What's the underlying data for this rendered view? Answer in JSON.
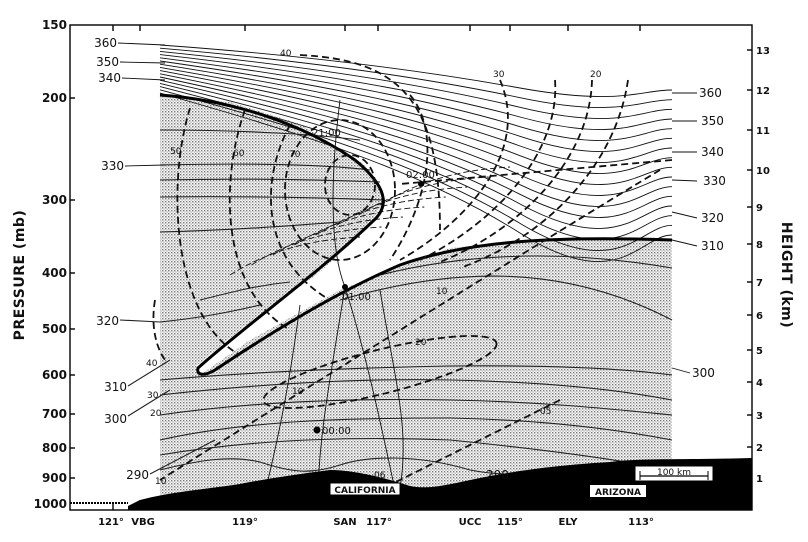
{
  "pressure_axis": {
    "title": "PRESSURE (mb)",
    "ticks": [
      "150",
      "200",
      "300",
      "400",
      "500",
      "600",
      "700",
      "800",
      "900",
      "1000"
    ]
  },
  "height_axis": {
    "title": "HEIGHT (km)",
    "ticks": [
      "13",
      "12",
      "11",
      "10",
      "9",
      "8",
      "7",
      "6",
      "5",
      "4",
      "3",
      "2",
      "1"
    ]
  },
  "x_axis_labels": [
    "121°",
    "VBG",
    "119°",
    "SAN",
    "117°",
    "UCC",
    "115°",
    "ELY",
    "113°"
  ],
  "theta_labels_left": [
    "360",
    "350",
    "340",
    "330",
    "320",
    "310",
    "300",
    "290"
  ],
  "theta_labels_right": [
    "360",
    "350",
    "340",
    "330",
    "320",
    "310",
    "300"
  ],
  "theta_label_bottom": "290",
  "isotach_labels": {
    "upper": [
      "40",
      "30",
      "20"
    ],
    "core": [
      "50",
      "60",
      "70"
    ],
    "lower_left": [
      "40",
      "30",
      "20",
      "10"
    ],
    "misc": [
      "10",
      "20",
      "10",
      "05",
      "06"
    ]
  },
  "trajectory_times": [
    "21:00",
    "02:00",
    "01:00",
    "00:00"
  ],
  "region_labels": {
    "california": "CALIFORNIA",
    "arizona": "ARIZONA"
  },
  "scale_bar": "100 km",
  "colors": {
    "ink": "#111111",
    "shading": "#9a9a9a",
    "terrain": "#000000",
    "background": "#ffffff"
  }
}
